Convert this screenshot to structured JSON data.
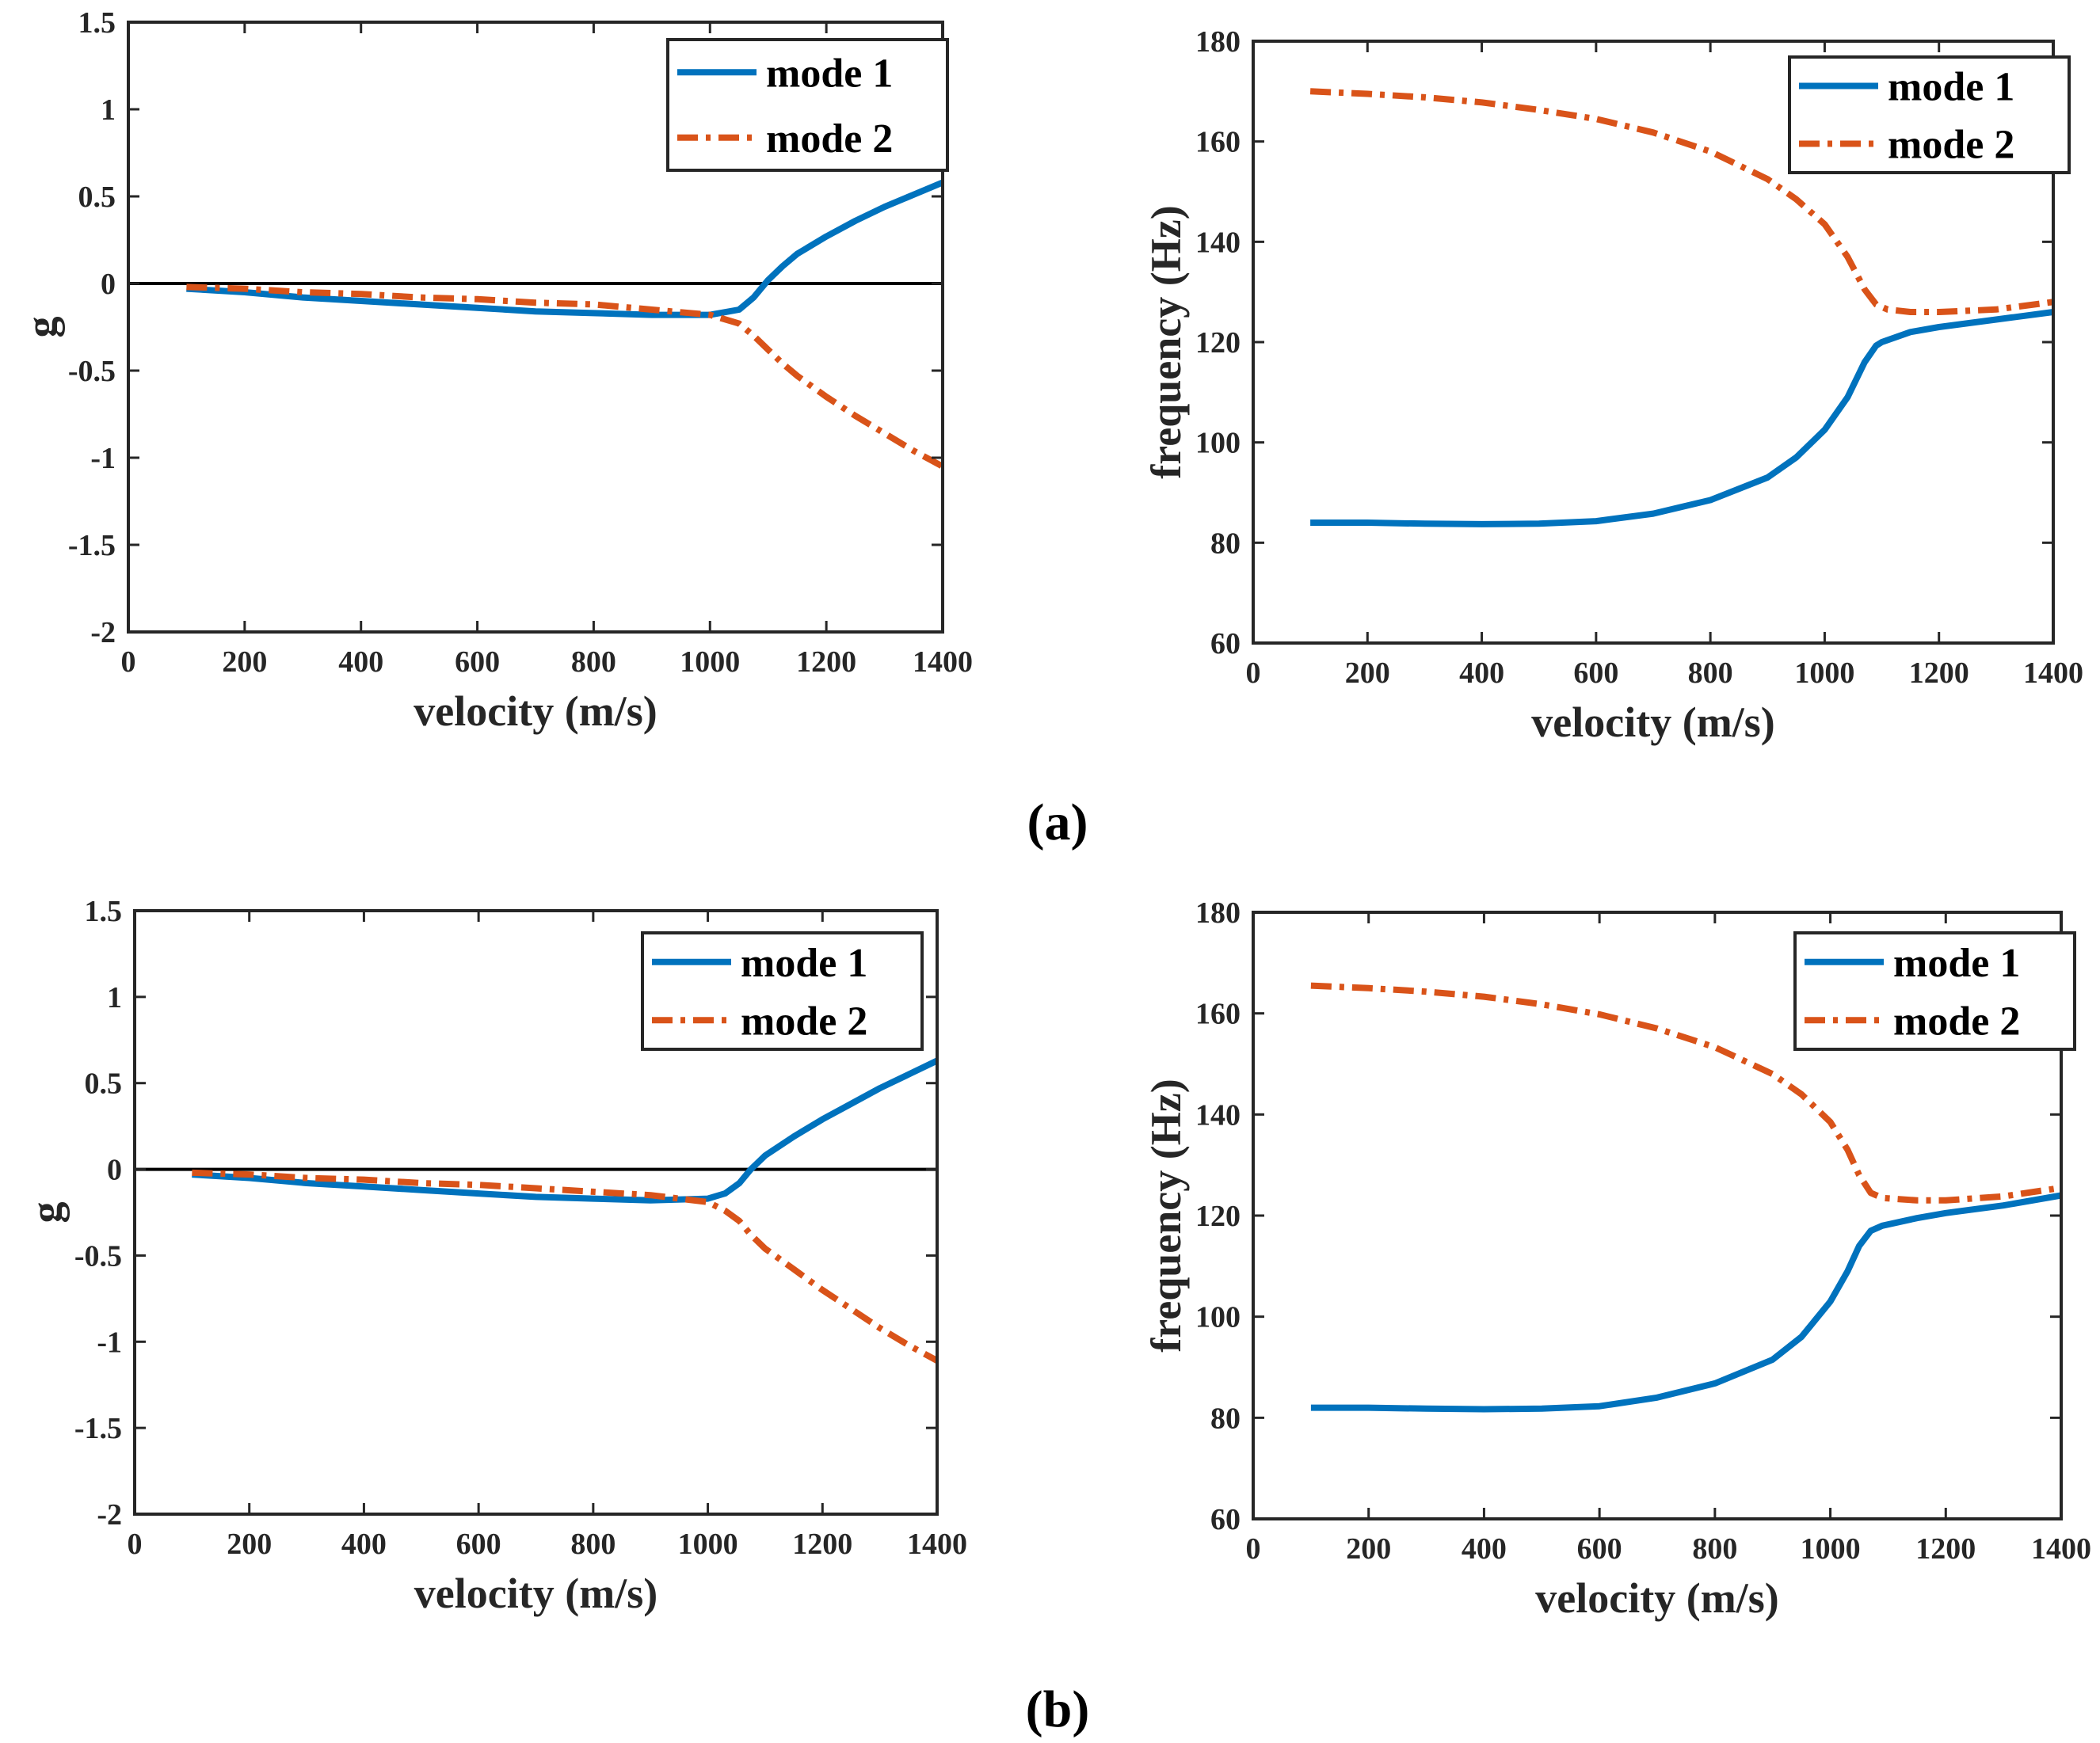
{
  "chart_data": [
    {
      "id": "a-left",
      "type": "line",
      "title": "",
      "xlabel": "velocity (m/s)",
      "ylabel": "g",
      "xlim": [
        0,
        1400
      ],
      "ylim": [
        -2,
        1.5
      ],
      "xticks": [
        0,
        200,
        400,
        600,
        800,
        1000,
        1200,
        1400
      ],
      "yticks": [
        -2,
        -1.5,
        -1,
        -0.5,
        0,
        0.5,
        1,
        1.5
      ],
      "ytick_labels": [
        "-2",
        "-1.5",
        "-1",
        "-0.5",
        "0",
        "0.5",
        "1",
        "1.5"
      ],
      "zero_line": true,
      "legend_position": "top-right",
      "series": [
        {
          "name": "mode 1",
          "color": "#0072BD",
          "style": "solid",
          "x": [
            100,
            200,
            300,
            400,
            500,
            600,
            700,
            800,
            900,
            1000,
            1050,
            1075,
            1100,
            1125,
            1150,
            1200,
            1250,
            1300,
            1350,
            1400
          ],
          "y": [
            -0.03,
            -0.05,
            -0.08,
            -0.1,
            -0.12,
            -0.14,
            -0.16,
            -0.17,
            -0.18,
            -0.18,
            -0.15,
            -0.08,
            0.02,
            0.1,
            0.17,
            0.27,
            0.36,
            0.44,
            0.51,
            0.58
          ]
        },
        {
          "name": "mode 2",
          "color": "#D95319",
          "style": "dashdot",
          "x": [
            100,
            200,
            300,
            400,
            500,
            600,
            700,
            800,
            900,
            1000,
            1050,
            1075,
            1100,
            1125,
            1150,
            1200,
            1250,
            1300,
            1350,
            1400
          ],
          "y": [
            -0.02,
            -0.03,
            -0.05,
            -0.06,
            -0.08,
            -0.09,
            -0.11,
            -0.12,
            -0.15,
            -0.18,
            -0.23,
            -0.3,
            -0.38,
            -0.46,
            -0.53,
            -0.65,
            -0.76,
            -0.86,
            -0.96,
            -1.05
          ]
        }
      ]
    },
    {
      "id": "a-right",
      "type": "line",
      "title": "",
      "xlabel": "velocity (m/s)",
      "ylabel": "frequency (Hz)",
      "xlim": [
        0,
        1400
      ],
      "ylim": [
        60,
        180
      ],
      "xticks": [
        0,
        200,
        400,
        600,
        800,
        1000,
        1200,
        1400
      ],
      "yticks": [
        60,
        80,
        100,
        120,
        140,
        160,
        180
      ],
      "ytick_labels": [
        "60",
        "80",
        "100",
        "120",
        "140",
        "160",
        "180"
      ],
      "zero_line": false,
      "legend_position": "top-right",
      "series": [
        {
          "name": "mode 1",
          "color": "#0072BD",
          "style": "solid",
          "x": [
            100,
            200,
            300,
            400,
            500,
            600,
            700,
            800,
            900,
            950,
            1000,
            1040,
            1070,
            1090,
            1100,
            1150,
            1200,
            1300,
            1400
          ],
          "y": [
            84,
            84,
            83.8,
            83.7,
            83.8,
            84.3,
            85.8,
            88.5,
            93,
            97,
            102.5,
            109,
            116,
            119.3,
            120,
            122,
            123,
            124.5,
            126
          ]
        },
        {
          "name": "mode 2",
          "color": "#D95319",
          "style": "dashdot",
          "x": [
            100,
            200,
            300,
            400,
            500,
            600,
            700,
            800,
            900,
            950,
            1000,
            1040,
            1070,
            1090,
            1110,
            1150,
            1200,
            1300,
            1400
          ],
          "y": [
            170,
            169.5,
            168.8,
            167.8,
            166.3,
            164.5,
            161.8,
            158,
            152.5,
            148.5,
            143.5,
            137,
            130.5,
            127.5,
            126.5,
            126,
            126,
            126.5,
            128
          ]
        }
      ]
    },
    {
      "id": "b-left",
      "type": "line",
      "title": "",
      "xlabel": "velocity (m/s)",
      "ylabel": "g",
      "xlim": [
        0,
        1400
      ],
      "ylim": [
        -2,
        1.5
      ],
      "xticks": [
        0,
        200,
        400,
        600,
        800,
        1000,
        1200,
        1400
      ],
      "yticks": [
        -2,
        -1.5,
        -1,
        -0.5,
        0,
        0.5,
        1,
        1.5
      ],
      "ytick_labels": [
        "-2",
        "-1.5",
        "-1",
        "-0.5",
        "0",
        "0.5",
        "1",
        "1.5"
      ],
      "zero_line": true,
      "legend_position": "top-right",
      "series": [
        {
          "name": "mode 1",
          "color": "#0072BD",
          "style": "solid",
          "x": [
            100,
            200,
            300,
            400,
            500,
            600,
            700,
            800,
            900,
            1000,
            1030,
            1055,
            1075,
            1100,
            1150,
            1200,
            1250,
            1300,
            1350,
            1400
          ],
          "y": [
            -0.03,
            -0.05,
            -0.08,
            -0.1,
            -0.12,
            -0.14,
            -0.16,
            -0.17,
            -0.18,
            -0.17,
            -0.14,
            -0.08,
            0.0,
            0.08,
            0.19,
            0.29,
            0.38,
            0.47,
            0.55,
            0.63
          ]
        },
        {
          "name": "mode 2",
          "color": "#D95319",
          "style": "dashdot",
          "x": [
            100,
            200,
            300,
            400,
            500,
            600,
            700,
            800,
            900,
            1000,
            1030,
            1055,
            1075,
            1100,
            1150,
            1200,
            1250,
            1300,
            1350,
            1400
          ],
          "y": [
            -0.02,
            -0.03,
            -0.05,
            -0.06,
            -0.08,
            -0.09,
            -0.11,
            -0.13,
            -0.15,
            -0.19,
            -0.24,
            -0.3,
            -0.38,
            -0.46,
            -0.58,
            -0.7,
            -0.81,
            -0.92,
            -1.02,
            -1.11
          ]
        }
      ]
    },
    {
      "id": "b-right",
      "type": "line",
      "title": "",
      "xlabel": "velocity (m/s)",
      "ylabel": "frequency (Hz)",
      "xlim": [
        0,
        1400
      ],
      "ylim": [
        60,
        180
      ],
      "xticks": [
        0,
        200,
        400,
        600,
        800,
        1000,
        1200,
        1400
      ],
      "yticks": [
        60,
        80,
        100,
        120,
        140,
        160,
        180
      ],
      "ytick_labels": [
        "60",
        "80",
        "100",
        "120",
        "140",
        "160",
        "180"
      ],
      "zero_line": false,
      "legend_position": "top-right",
      "series": [
        {
          "name": "mode 1",
          "color": "#0072BD",
          "style": "solid",
          "x": [
            100,
            200,
            300,
            400,
            500,
            600,
            700,
            800,
            900,
            950,
            1000,
            1030,
            1050,
            1070,
            1090,
            1150,
            1200,
            1300,
            1400
          ],
          "y": [
            82,
            82,
            81.8,
            81.7,
            81.8,
            82.3,
            84,
            86.8,
            91.5,
            96,
            103,
            109,
            114,
            117,
            118,
            119.5,
            120.5,
            122,
            124
          ]
        },
        {
          "name": "mode 2",
          "color": "#D95319",
          "style": "dashdot",
          "x": [
            100,
            200,
            300,
            400,
            500,
            600,
            700,
            800,
            900,
            950,
            1000,
            1030,
            1050,
            1070,
            1090,
            1150,
            1200,
            1300,
            1400
          ],
          "y": [
            165.5,
            165,
            164.3,
            163.3,
            161.8,
            159.8,
            157,
            153.3,
            148,
            144,
            138.5,
            133,
            128,
            124.5,
            123.5,
            123,
            123,
            123.8,
            125.5
          ]
        }
      ]
    }
  ],
  "captions": [
    "(a)",
    "(b)"
  ]
}
